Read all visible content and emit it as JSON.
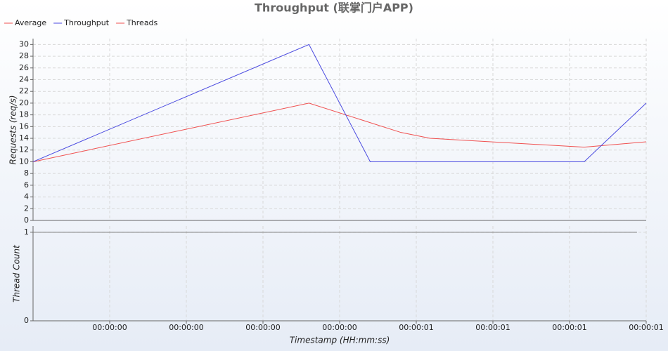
{
  "chart_data": [
    {
      "type": "line",
      "title": "Throughput (联掌门户APP)",
      "ylabel": "Requests (req/s)",
      "xlim": [
        0,
        8
      ],
      "ylim": [
        0,
        31
      ],
      "yticks": [
        0,
        2,
        4,
        6,
        8,
        10,
        12,
        14,
        16,
        18,
        20,
        22,
        24,
        26,
        28,
        30
      ],
      "grid": true,
      "series": [
        {
          "name": "Average",
          "color": "#f05050",
          "x": [
            0,
            3.6,
            4.8,
            5.18,
            7.19,
            8
          ],
          "values": [
            10,
            20,
            15,
            14,
            12.5,
            13.4
          ]
        },
        {
          "name": "Throughput",
          "color": "#4a4ae0",
          "x": [
            0,
            3.6,
            4.4,
            7.19,
            8
          ],
          "values": [
            10,
            30,
            10,
            10,
            20
          ]
        }
      ]
    },
    {
      "type": "line",
      "ylabel": "Thread Count",
      "xlabel": "Timestamp (HH:mm:ss)",
      "xlim": [
        0,
        8
      ],
      "ylim": [
        0,
        1.07
      ],
      "yticks": [
        0,
        1
      ],
      "grid": true,
      "xticks": [
        {
          "value": 1,
          "label": "00:00:00"
        },
        {
          "value": 2,
          "label": "00:00:00"
        },
        {
          "value": 3,
          "label": "00:00:00"
        },
        {
          "value": 4,
          "label": "00:00:00"
        },
        {
          "value": 5,
          "label": "00:00:01"
        },
        {
          "value": 6,
          "label": "00:00:01"
        },
        {
          "value": 7,
          "label": "00:00:01"
        },
        {
          "value": 8,
          "label": "00:00:01"
        }
      ],
      "series": [
        {
          "name": "Threads",
          "color": "#777777",
          "x": [
            0,
            7.88
          ],
          "values": [
            1,
            1
          ]
        }
      ]
    }
  ]
}
